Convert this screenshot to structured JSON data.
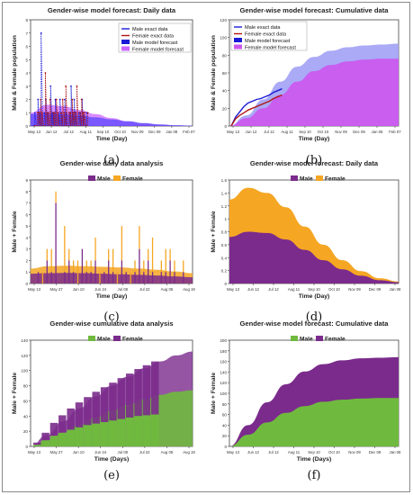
{
  "chart_data": [
    {
      "type": "line",
      "title": "Gender-wise model forecast: Daily data",
      "xlabel": "Time (Day)",
      "ylabel": "Male & Female population",
      "yticks": [
        "0",
        "1",
        "2",
        "3",
        "4",
        "5",
        "6",
        "7",
        "8"
      ],
      "xticks": [
        "May 13",
        "Jun 12",
        "Jul 12",
        "Aug 11",
        "Sep 10",
        "Oct 10",
        "Nov 09",
        "Dec 09",
        "Jan 08",
        "Feb 07"
      ],
      "ylim": [
        0,
        8
      ],
      "legend": "top-right",
      "caption": "(a)",
      "colors": {
        "male": "#1b1bd6",
        "female": "#b01515",
        "male_band": "#2c2cff",
        "female_band": "#cc66ff"
      },
      "series": [
        {
          "name": "Male exact data",
          "values": [
            0,
            1,
            0,
            2,
            1,
            7,
            0,
            1,
            2,
            1,
            0,
            3,
            1,
            1,
            2,
            0,
            1,
            2,
            1,
            0,
            2,
            1,
            0,
            1,
            3,
            1,
            2,
            1,
            0,
            1,
            1,
            2,
            1,
            0,
            1
          ]
        },
        {
          "name": "Female exact data",
          "values": [
            0,
            0,
            1,
            1,
            2,
            1,
            0,
            4,
            1,
            1,
            2,
            0,
            1,
            1,
            2,
            1,
            0,
            1,
            2,
            1,
            3,
            0,
            1,
            1,
            2,
            1,
            1,
            3,
            0,
            1,
            2,
            1,
            1,
            0,
            1
          ]
        },
        {
          "name": "Male model forecast",
          "values": [
            0.9,
            0.95,
            0.9,
            0.8,
            0.65,
            0.5,
            0.35,
            0.22,
            0.12,
            0.06,
            0.03
          ]
        },
        {
          "name": "Female model forecast",
          "values": [
            1.0,
            1.6,
            1.5,
            1.2,
            0.9,
            0.6,
            0.35,
            0.2,
            0.1,
            0.05,
            0.02
          ]
        }
      ]
    },
    {
      "type": "area",
      "title": "Gender-wise model forecast: Cumulative data",
      "xlabel": "Time (Day)",
      "ylabel": "Male & Female population",
      "yticks": [
        "0",
        "20",
        "40",
        "60",
        "80",
        "100",
        "120"
      ],
      "xticks": [
        "May 13",
        "Jun 12",
        "Jul 12",
        "Aug 11",
        "Sep 10",
        "Oct 10",
        "Nov 09",
        "Dec 09",
        "Jan 08",
        "Feb 07"
      ],
      "ylim": [
        0,
        120
      ],
      "legend": "top-left",
      "caption": "(b)",
      "colors": {
        "male": "#1b1bd6",
        "female": "#b01515",
        "male_band": "#9b9bf5",
        "female_band": "#cc55ee"
      },
      "series": [
        {
          "name": "Male exact data",
          "values": [
            0,
            10,
            16,
            22,
            26,
            28,
            30,
            31,
            33,
            35,
            38,
            40,
            42
          ]
        },
        {
          "name": "Female exact data",
          "values": [
            0,
            8,
            12,
            15,
            18,
            20,
            22,
            24,
            26,
            28,
            31,
            33,
            35
          ]
        },
        {
          "name": "Male model forecast",
          "values": [
            0,
            12,
            30,
            50,
            67,
            78,
            85,
            89,
            91,
            92,
            93
          ]
        },
        {
          "name": "Female model forecast",
          "values": [
            0,
            9,
            20,
            35,
            50,
            62,
            69,
            73,
            75,
            76,
            76
          ]
        }
      ]
    },
    {
      "type": "bar",
      "title": "Gender-wise daily data analysis",
      "xlabel": "Time (Day)",
      "ylabel": "Male + Female",
      "yticks": [
        "0",
        "1",
        "2",
        "3",
        "4",
        "5",
        "6",
        "7",
        "8",
        "9"
      ],
      "xticks": [
        "May 13",
        "May 27",
        "Jun 10",
        "Jun 24",
        "Jul 08",
        "Jul 22",
        "Aug 05",
        "Aug 19"
      ],
      "ylim": [
        0,
        9
      ],
      "legend": "top-center",
      "caption": "(c)",
      "colors": {
        "male": "#7b2b8c",
        "female": "#f5a623"
      },
      "series": [
        {
          "name": "Male",
          "values": [
            0,
            1,
            0,
            2,
            1,
            7,
            0,
            1,
            2,
            1,
            0,
            3,
            1,
            1,
            2,
            0,
            1,
            2,
            1,
            0,
            2,
            1,
            0,
            1,
            3,
            1,
            2,
            1,
            0,
            1,
            1,
            2,
            1,
            0,
            1
          ]
        },
        {
          "name": "Female",
          "values": [
            0,
            0,
            1,
            1,
            2,
            1,
            0,
            4,
            1,
            1,
            2,
            0,
            1,
            1,
            2,
            1,
            0,
            1,
            2,
            1,
            3,
            0,
            1,
            1,
            2,
            1,
            1,
            3,
            0,
            1,
            2,
            1,
            1,
            0,
            1
          ]
        }
      ],
      "model_band_male": [
        0.85,
        0.9,
        0.92,
        0.9,
        0.85,
        0.8,
        0.75,
        0.7,
        0.62,
        0.55
      ],
      "model_band_total": [
        1.3,
        1.5,
        1.55,
        1.5,
        1.45,
        1.4,
        1.3,
        1.2,
        1.05,
        0.9
      ]
    },
    {
      "type": "area",
      "title": "Gender-wise model forecast: Daily data",
      "xlabel": "Time (Day)",
      "ylabel": "Male + Female",
      "yticks": [
        "0",
        "0.2",
        "0.4",
        "0.6",
        "0.8",
        "1",
        "1.2",
        "1.4",
        "1.6"
      ],
      "xticks": [
        "May 13",
        "Jun 12",
        "Jul 12",
        "Aug 11",
        "Sep 10",
        "Oct 10",
        "Nov 09",
        "Dec 09",
        "Jan 08"
      ],
      "ylim": [
        0,
        1.6
      ],
      "legend": "top-center",
      "caption": "(d)",
      "colors": {
        "male": "#7b2b8c",
        "female": "#f5a623"
      },
      "series": [
        {
          "name": "Male",
          "values": [
            0.72,
            0.8,
            0.78,
            0.68,
            0.52,
            0.36,
            0.22,
            0.12,
            0.05,
            0.02
          ]
        },
        {
          "name": "Female",
          "values": [
            0.58,
            0.68,
            0.62,
            0.5,
            0.36,
            0.24,
            0.14,
            0.07,
            0.03,
            0.01
          ]
        }
      ]
    },
    {
      "type": "bar",
      "title": "Gender-wise cumulative data analysis",
      "xlabel": "Time (Days)",
      "ylabel": "Male + Female",
      "yticks": [
        "0",
        "20",
        "40",
        "60",
        "80",
        "100",
        "120",
        "140"
      ],
      "xticks": [
        "May 13",
        "May 27",
        "Jun 10",
        "Jun 24",
        "Jul 08",
        "Jul 22",
        "Aug 05",
        "Aug 19"
      ],
      "ylim": [
        0,
        140
      ],
      "legend": "top-center",
      "caption": "(e)",
      "colors": {
        "male": "#6fba3e",
        "female": "#7b2b8c"
      },
      "series": [
        {
          "name": "Male",
          "values": [
            2,
            8,
            14,
            18,
            22,
            25,
            28,
            30,
            32,
            34,
            36,
            38,
            40,
            41,
            42
          ]
        },
        {
          "name": "Female",
          "values": [
            3,
            10,
            17,
            23,
            28,
            33,
            37,
            42,
            46,
            50,
            54,
            58,
            62,
            66,
            70
          ]
        }
      ],
      "model_male": [
        0,
        8,
        18,
        28,
        38,
        47,
        55,
        62,
        68,
        72,
        74
      ],
      "model_total": [
        0,
        15,
        33,
        50,
        66,
        80,
        92,
        103,
        112,
        120,
        125
      ]
    },
    {
      "type": "area",
      "title": "Gender-wise model forecast: Cumulative data",
      "xlabel": "Time (Days)",
      "ylabel": "Male + Female",
      "yticks": [
        "0",
        "20",
        "40",
        "60",
        "80",
        "100",
        "120",
        "140",
        "160",
        "180",
        "200"
      ],
      "xticks": [
        "May 13",
        "Jun 12",
        "Jul 12",
        "Aug 11",
        "Sep 10",
        "Oct 10",
        "Nov 09",
        "Dec 09",
        "Jan 08"
      ],
      "ylim": [
        0,
        200
      ],
      "legend": "top-center",
      "caption": "(f)",
      "colors": {
        "male": "#6fba3e",
        "female": "#7b2b8c"
      },
      "series": [
        {
          "name": "Male",
          "values": [
            0,
            22,
            45,
            63,
            76,
            84,
            88,
            90,
            91,
            91
          ]
        },
        {
          "name": "Female",
          "values": [
            0,
            18,
            38,
            54,
            65,
            71,
            74,
            76,
            76,
            77
          ]
        }
      ]
    }
  ]
}
